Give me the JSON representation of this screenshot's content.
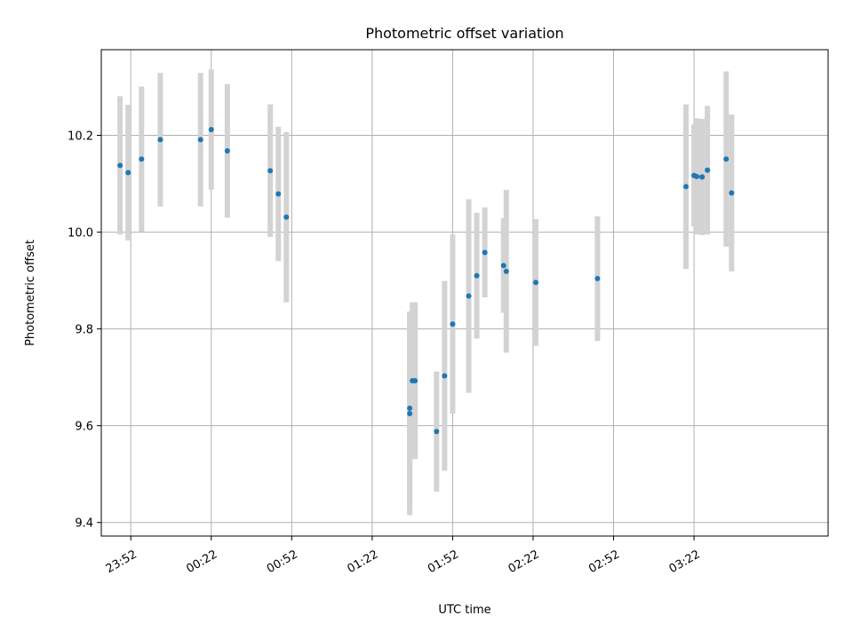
{
  "chart_data": {
    "type": "scatter",
    "title": "Photometric offset variation",
    "xlabel": "UTC time",
    "ylabel": "Photometric offset",
    "xlim": [
      "23:41",
      "04:12"
    ],
    "ylim": [
      9.372,
      10.377
    ],
    "xticks": [
      "23:52",
      "00:22",
      "00:52",
      "01:22",
      "01:52",
      "02:22",
      "02:52",
      "03:22"
    ],
    "yticks": [
      9.4,
      9.6,
      9.8,
      10.0,
      10.2
    ],
    "grid": true,
    "colors": {
      "point": "#1f77b4",
      "errorbar": "#d3d3d3",
      "grid": "#b0b0b0"
    },
    "series": [
      {
        "points": [
          {
            "t": "23:48",
            "y": 10.138,
            "err": 0.143
          },
          {
            "t": "23:51",
            "y": 10.123,
            "err": 0.14
          },
          {
            "t": "23:56",
            "y": 10.151,
            "err": 0.15
          },
          {
            "t": "00:03",
            "y": 10.191,
            "err": 0.138
          },
          {
            "t": "00:18",
            "y": 10.191,
            "err": 0.138
          },
          {
            "t": "00:22",
            "y": 10.212,
            "err": 0.124
          },
          {
            "t": "00:28",
            "y": 10.168,
            "err": 0.138
          },
          {
            "t": "00:44",
            "y": 10.127,
            "err": 0.137
          },
          {
            "t": "00:47",
            "y": 10.079,
            "err": 0.139
          },
          {
            "t": "00:50",
            "y": 10.031,
            "err": 0.176
          },
          {
            "t": "01:36",
            "y": 9.625,
            "err": 0.21
          },
          {
            "t": "01:36",
            "y": 9.636,
            "err": 0.2
          },
          {
            "t": "01:37",
            "y": 9.693,
            "err": 0.162
          },
          {
            "t": "01:38",
            "y": 9.693,
            "err": 0.162
          },
          {
            "t": "01:46",
            "y": 9.588,
            "err": 0.124
          },
          {
            "t": "01:49",
            "y": 9.703,
            "err": 0.196
          },
          {
            "t": "01:52",
            "y": 9.81,
            "err": 0.185
          },
          {
            "t": "01:58",
            "y": 9.868,
            "err": 0.2
          },
          {
            "t": "02:01",
            "y": 9.91,
            "err": 0.13
          },
          {
            "t": "02:04",
            "y": 9.958,
            "err": 0.093
          },
          {
            "t": "02:11",
            "y": 9.931,
            "err": 0.098
          },
          {
            "t": "02:12",
            "y": 9.919,
            "err": 0.168
          },
          {
            "t": "02:23",
            "y": 9.896,
            "err": 0.131
          },
          {
            "t": "02:46",
            "y": 9.904,
            "err": 0.129
          },
          {
            "t": "03:19",
            "y": 10.094,
            "err": 0.17
          },
          {
            "t": "03:22",
            "y": 10.117,
            "err": 0.105
          },
          {
            "t": "03:23",
            "y": 10.115,
            "err": 0.12
          },
          {
            "t": "03:25",
            "y": 10.114,
            "err": 0.12
          },
          {
            "t": "03:25",
            "y": 10.114,
            "err": 0.12
          },
          {
            "t": "03:27",
            "y": 10.128,
            "err": 0.133
          },
          {
            "t": "03:34",
            "y": 10.151,
            "err": 0.181
          },
          {
            "t": "03:36",
            "y": 10.081,
            "err": 0.162
          }
        ]
      }
    ]
  }
}
